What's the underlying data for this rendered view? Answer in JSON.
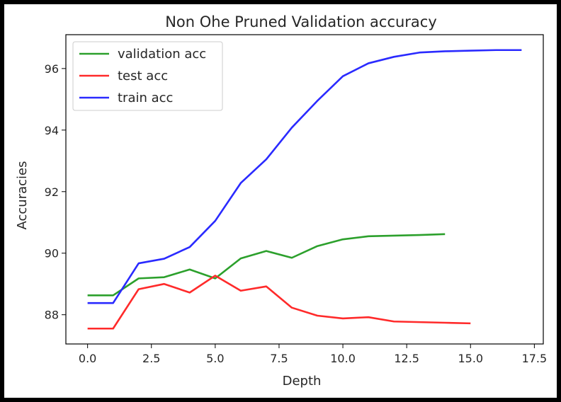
{
  "chart_data": {
    "type": "line",
    "title": "Non Ohe Pruned Validation accuracy",
    "xlabel": "Depth",
    "ylabel": "Accuracies",
    "xlim": [
      -0.85,
      17.85
    ],
    "ylim": [
      87.05,
      97.1
    ],
    "xticks": [
      0.0,
      2.5,
      5.0,
      7.5,
      10.0,
      12.5,
      15.0,
      17.5
    ],
    "xtick_labels": [
      "0.0",
      "2.5",
      "5.0",
      "7.5",
      "10.0",
      "12.5",
      "15.0",
      "17.5"
    ],
    "yticks": [
      88,
      90,
      92,
      94,
      96
    ],
    "ytick_labels": [
      "88",
      "90",
      "92",
      "94",
      "96"
    ],
    "grid": false,
    "legend_position": "top-left",
    "series": [
      {
        "name": "validation acc",
        "color": "#2ca02c",
        "x": [
          0,
          1,
          2,
          3,
          4,
          5,
          6,
          7,
          8,
          9,
          10,
          11,
          12,
          13,
          14
        ],
        "y": [
          88.63,
          88.63,
          89.18,
          89.22,
          89.47,
          89.18,
          89.83,
          90.07,
          89.85,
          90.23,
          90.45,
          90.55,
          90.57,
          90.59,
          90.62
        ]
      },
      {
        "name": "test acc",
        "color": "#ff2a2a",
        "x": [
          0,
          1,
          2,
          3,
          4,
          5,
          6,
          7,
          8,
          9,
          10,
          11,
          12,
          13,
          14,
          15
        ],
        "y": [
          87.55,
          87.55,
          88.83,
          89.0,
          88.72,
          89.27,
          88.78,
          88.92,
          88.23,
          87.97,
          87.88,
          87.92,
          87.78,
          87.76,
          87.74,
          87.72
        ]
      },
      {
        "name": "train acc",
        "color": "#2a2aff",
        "x": [
          0,
          1,
          2,
          3,
          4,
          5,
          6,
          7,
          8,
          9,
          10,
          11,
          12,
          13,
          14,
          15,
          16,
          17
        ],
        "y": [
          88.38,
          88.38,
          89.67,
          89.82,
          90.2,
          91.05,
          92.28,
          93.05,
          94.08,
          94.95,
          95.75,
          96.17,
          96.38,
          96.52,
          96.56,
          96.58,
          96.6,
          96.6
        ]
      }
    ]
  }
}
